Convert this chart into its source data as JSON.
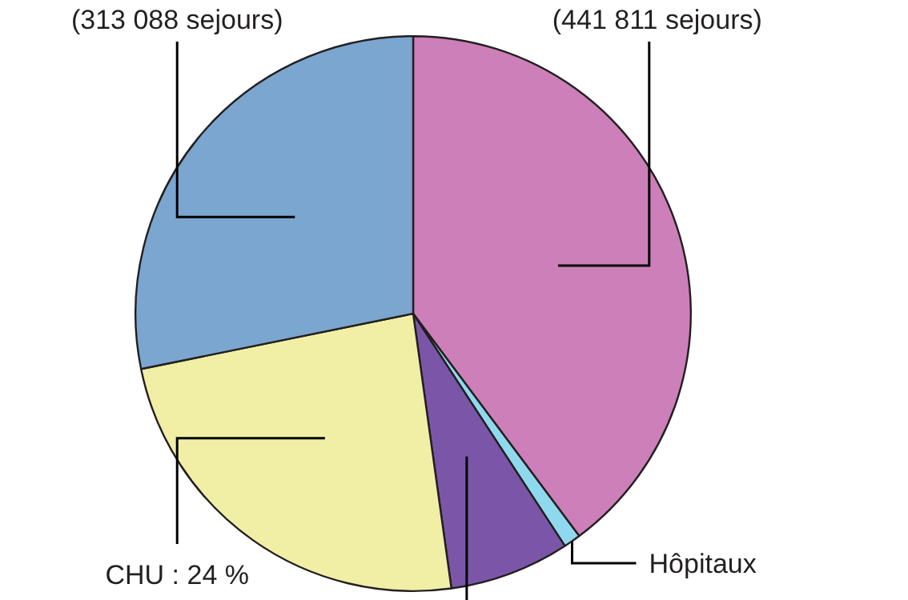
{
  "chart_data": {
    "type": "pie",
    "categories": [
      "(441 811 sejours)",
      "Hôpitaux",
      null,
      "CHU : 24 %",
      "(313 088 sejours)"
    ],
    "values": [
      39.8,
      1,
      7,
      24,
      28.2
    ],
    "colors": [
      "#cc7fb8",
      "#8fd9ef",
      "#7b56a8",
      "#f0efa5",
      "#7aa6cf"
    ],
    "legend": false
  }
}
